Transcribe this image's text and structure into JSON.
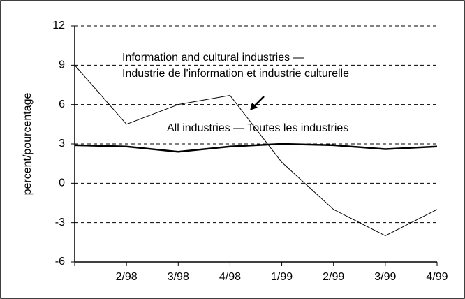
{
  "chart_data": {
    "type": "line",
    "categories": [
      null,
      "2/98",
      "3/98",
      "4/98",
      "1/99",
      "2/99",
      "3/99",
      "4/99"
    ],
    "series": [
      {
        "name": "Information and cultural industries",
        "color": "#000000",
        "values": [
          9,
          4.5,
          6,
          6.7,
          1.6,
          -2,
          -4,
          -2
        ]
      },
      {
        "name": "All industries",
        "color": "#000000",
        "values": [
          2.9,
          2.8,
          2.4,
          2.8,
          3.0,
          2.9,
          2.6,
          2.8
        ]
      }
    ],
    "ylabel": "percent/pourcentage",
    "annotations": [
      "Information and cultural industries —",
      "Industrie de l'information et industrie culturelle",
      "All industries — Toutes les industries"
    ],
    "ylim": [
      -6,
      12
    ],
    "yticks": [
      -6,
      -3,
      0,
      3,
      6,
      9,
      12
    ],
    "grid": true
  }
}
